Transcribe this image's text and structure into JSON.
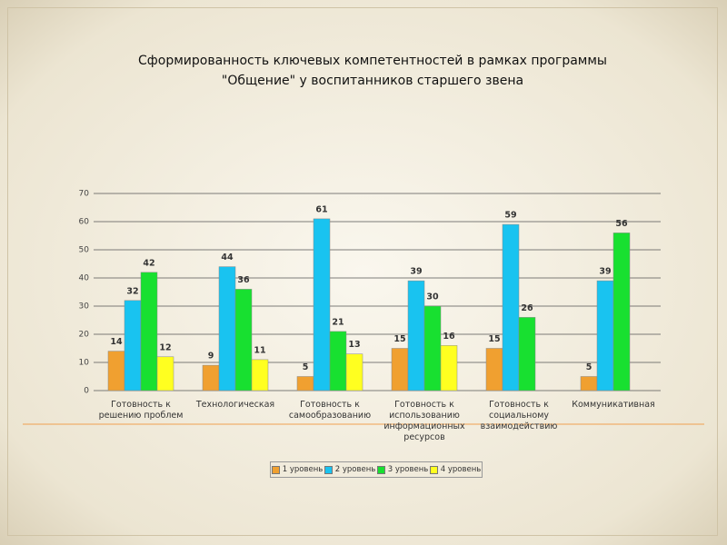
{
  "chart_data": {
    "type": "bar",
    "title": "Сформированность ключевых компетентностей в рамках программы \"Общение\" у воспитанников старшего звена",
    "categories": [
      "Готовность к решению проблем",
      "Технологическая",
      "Готовность к самообразованию",
      "Готовность к использованию информационных ресурсов",
      "Готовность к социальному взаимодействию",
      "Коммуникативная"
    ],
    "series": [
      {
        "name": "1 уровень",
        "color": "#f0a030",
        "values": [
          14,
          9,
          5,
          15,
          15,
          5
        ]
      },
      {
        "name": "2 уровень",
        "color": "#19c3f0",
        "values": [
          32,
          44,
          61,
          39,
          59,
          39
        ]
      },
      {
        "name": "3 уровень",
        "color": "#18e030",
        "values": [
          42,
          36,
          21,
          30,
          26,
          56
        ]
      },
      {
        "name": "4 уровень",
        "color": "#ffff20",
        "values": [
          12,
          11,
          13,
          16,
          null,
          null
        ]
      }
    ],
    "ylim": [
      0,
      70
    ],
    "yticks": [
      0,
      10,
      20,
      30,
      40,
      50,
      60,
      70
    ],
    "grid": true,
    "legend": "bottom"
  }
}
